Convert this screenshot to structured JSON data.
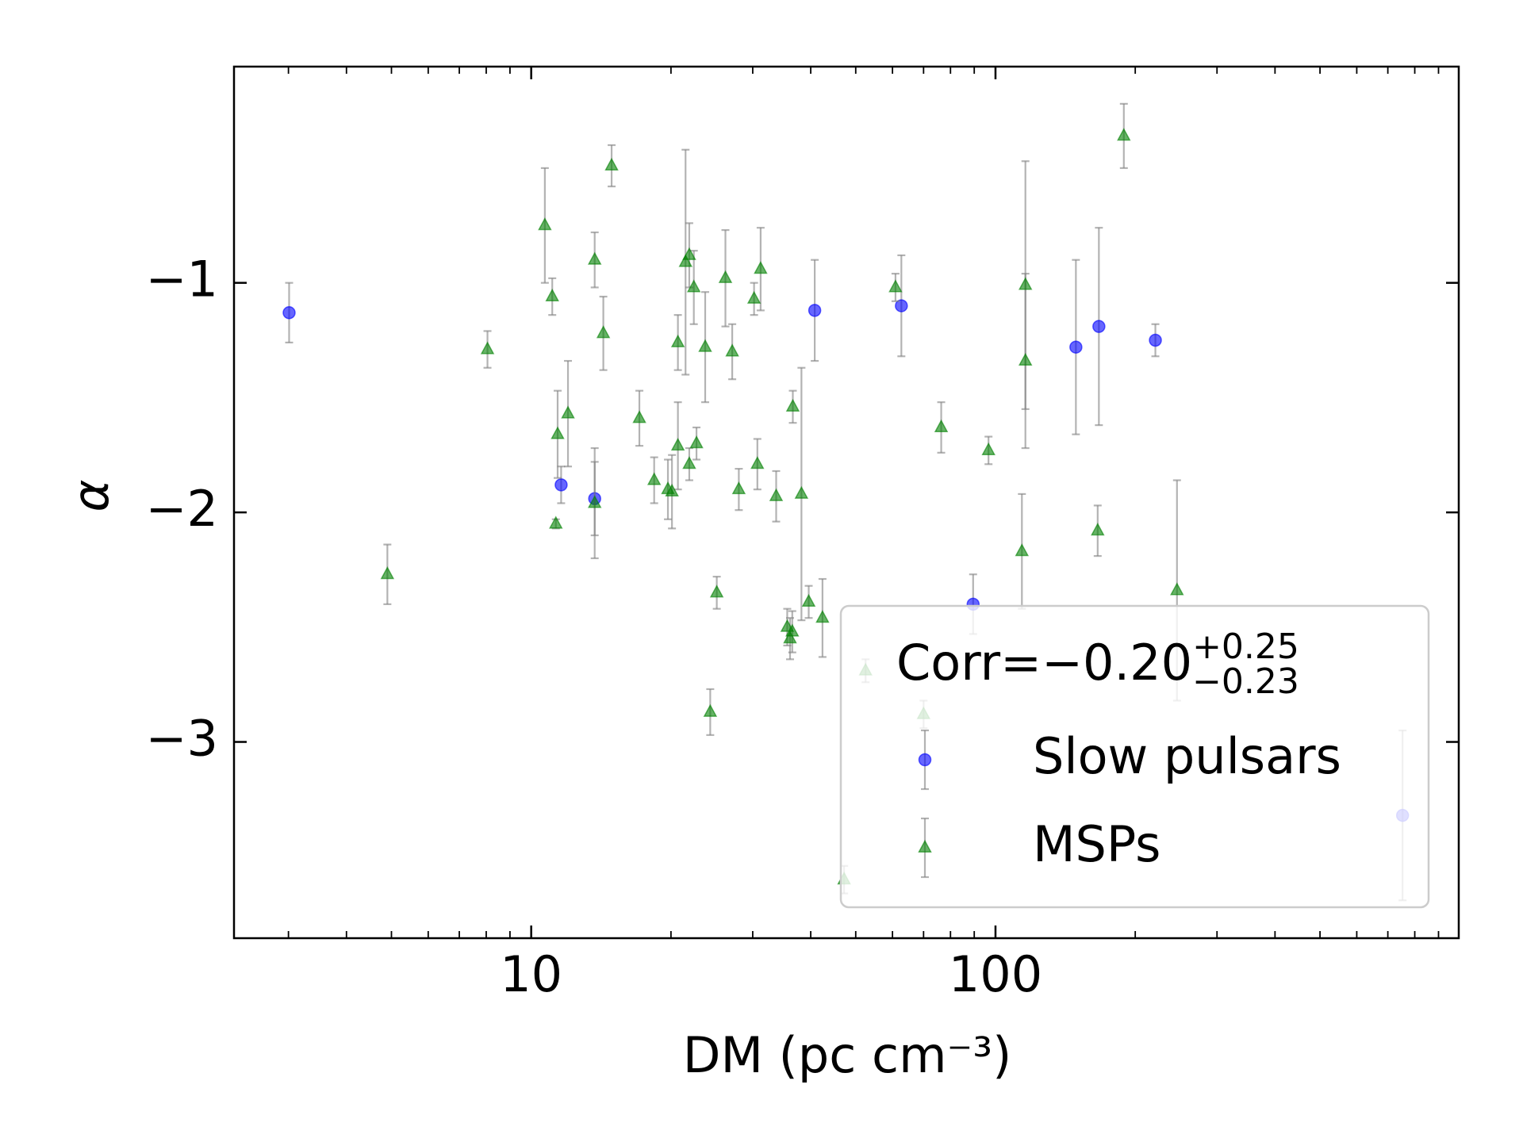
{
  "chart_data": {
    "type": "scatter",
    "xlabel": "DM (pc cm⁻³)",
    "ylabel": "α",
    "xscale": "log",
    "xlim": [
      2.29,
      995
    ],
    "ylim": [
      -3.855,
      -0.058
    ],
    "xticks": [
      10,
      100
    ],
    "xminorticks": [
      3,
      4,
      5,
      6,
      7,
      8,
      9,
      20,
      30,
      40,
      50,
      60,
      70,
      80,
      90,
      200,
      300,
      400,
      500,
      600,
      700,
      800,
      900
    ],
    "yticks": [
      {
        "value": -1,
        "label": "−1"
      },
      {
        "value": -2,
        "label": "−2"
      },
      {
        "value": -3,
        "label": "−3"
      }
    ],
    "legend": "lower right",
    "annotation": {
      "text": "Corr=−0.20",
      "sup": "+0.25",
      "sub": "−0.23"
    },
    "series": [
      {
        "name": "Slow pulsars",
        "color": "#0000ff",
        "marker": "circle",
        "x": [
          3.01,
          11.6,
          13.7,
          40.8,
          62.7,
          89.5,
          149,
          167,
          221,
          753
        ],
        "values": [
          -1.13,
          -1.88,
          -1.94,
          -1.12,
          -1.1,
          -2.4,
          -1.28,
          -1.19,
          -1.25,
          -3.32
        ],
        "errors": [
          0.13,
          0.08,
          0.16,
          0.22,
          0.22,
          0.13,
          0.38,
          0.43,
          0.07,
          0.37
        ]
      },
      {
        "name": "MSPs",
        "color": "#008000",
        "marker": "triangle",
        "x": [
          4.9,
          8.05,
          10.7,
          11.1,
          11.3,
          11.4,
          12.0,
          13.7,
          13.7,
          14.3,
          14.9,
          17.1,
          18.4,
          19.7,
          20.1,
          20.7,
          20.7,
          21.5,
          21.9,
          21.9,
          22.4,
          22.7,
          23.7,
          24.3,
          25.1,
          26.2,
          27.1,
          28.0,
          30.2,
          30.7,
          31.2,
          33.7,
          35.6,
          36.1,
          36.5,
          36.6,
          38.2,
          39.6,
          42.4,
          47.2,
          52.5,
          60.9,
          70,
          76.4,
          96.6,
          114,
          116,
          116,
          166,
          189,
          246
        ],
        "values": [
          -2.27,
          -1.29,
          -0.75,
          -1.06,
          -2.05,
          -1.66,
          -1.57,
          -0.9,
          -1.96,
          -1.22,
          -0.49,
          -1.59,
          -1.86,
          -1.9,
          -1.91,
          -1.26,
          -1.71,
          -0.91,
          -0.88,
          -1.79,
          -1.02,
          -1.7,
          -1.28,
          -2.87,
          -2.35,
          -0.98,
          -1.3,
          -1.9,
          -1.07,
          -1.79,
          -0.94,
          -1.93,
          -2.5,
          -2.55,
          -2.52,
          -1.54,
          -1.92,
          -2.39,
          -2.46,
          -3.6,
          -2.69,
          -1.02,
          -2.88,
          -1.63,
          -1.73,
          -2.17,
          -1.01,
          -1.34,
          -2.08,
          -0.36,
          -2.34
        ],
        "errors": [
          0.13,
          0.08,
          0.25,
          0.08,
          0.02,
          0.19,
          0.23,
          0.12,
          0.24,
          0.16,
          0.09,
          0.12,
          0.1,
          0.13,
          0.16,
          0.12,
          0.19,
          0.49,
          0.14,
          0.07,
          0.16,
          0.07,
          0.24,
          0.1,
          0.07,
          0.21,
          0.12,
          0.09,
          0.07,
          0.11,
          0.18,
          0.11,
          0.08,
          0.09,
          0.09,
          0.07,
          0.55,
          0.07,
          0.17,
          0.06,
          0.05,
          0.06,
          0.06,
          0.11,
          0.06,
          0.25,
          0.54,
          0.38,
          0.11,
          0.14,
          0.48
        ]
      }
    ]
  }
}
